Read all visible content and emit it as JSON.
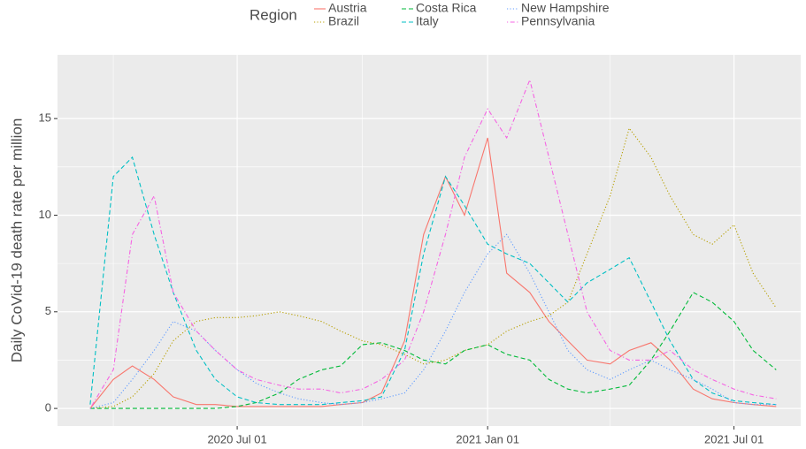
{
  "chart_data": {
    "type": "line",
    "y_label": "Daily CoVid-19 death rate per million",
    "legend_title": "Region",
    "legend_position": "top",
    "x": [
      "2020-03-15",
      "2020-04-01",
      "2020-04-15",
      "2020-05-01",
      "2020-05-15",
      "2020-06-01",
      "2020-06-15",
      "2020-07-01",
      "2020-07-15",
      "2020-08-01",
      "2020-08-15",
      "2020-09-01",
      "2020-09-15",
      "2020-10-01",
      "2020-10-15",
      "2020-11-01",
      "2020-11-15",
      "2020-12-01",
      "2020-12-15",
      "2021-01-01",
      "2021-01-15",
      "2021-02-01",
      "2021-02-15",
      "2021-03-01",
      "2021-03-15",
      "2021-04-01",
      "2021-04-15",
      "2021-05-01",
      "2021-05-15",
      "2021-06-01",
      "2021-06-15",
      "2021-07-01",
      "2021-07-15",
      "2021-08-01"
    ],
    "series": [
      {
        "name": "Austria",
        "color": "#F8766D",
        "linetype": "solid",
        "values": [
          0,
          1.5,
          2.2,
          1.5,
          0.6,
          0.2,
          0.2,
          0.1,
          0.1,
          0.1,
          0.1,
          0.1,
          0.2,
          0.3,
          0.8,
          3.5,
          9,
          12,
          10,
          14,
          7,
          6,
          4.5,
          3.5,
          2.5,
          2.3,
          3,
          3.4,
          2.5,
          1,
          0.5,
          0.3,
          0.2,
          0.1
        ]
      },
      {
        "name": "Brazil",
        "color": "#B79F00",
        "linetype": "dotted",
        "values": [
          0,
          0.1,
          0.6,
          1.8,
          3.5,
          4.5,
          4.7,
          4.7,
          4.8,
          5,
          4.8,
          4.5,
          4,
          3.5,
          3.3,
          2.8,
          2.3,
          2.5,
          3,
          3.3,
          4,
          4.5,
          4.8,
          5.5,
          8,
          11,
          14.5,
          13,
          11,
          9,
          8.5,
          9.5,
          7,
          5.2
        ]
      },
      {
        "name": "Costa Rica",
        "color": "#00BA38",
        "linetype": "dashed",
        "values": [
          0,
          0,
          0,
          0,
          0,
          0,
          0,
          0.1,
          0.3,
          0.8,
          1.5,
          2,
          2.2,
          3.3,
          3.4,
          3,
          2.5,
          2.3,
          3,
          3.3,
          2.8,
          2.5,
          1.5,
          1,
          0.8,
          1,
          1.2,
          2.5,
          4,
          6,
          5.5,
          4.5,
          3,
          2
        ]
      },
      {
        "name": "Italy",
        "color": "#00BFC4",
        "linetype": "dashed",
        "values": [
          0.2,
          12,
          13,
          9,
          6,
          3,
          1.5,
          0.6,
          0.3,
          0.2,
          0.2,
          0.2,
          0.3,
          0.4,
          0.6,
          3,
          8,
          12,
          10.5,
          8.5,
          8,
          7.5,
          6.5,
          5.5,
          6.5,
          7.2,
          7.8,
          5.5,
          3.5,
          1.5,
          0.8,
          0.4,
          0.3,
          0.2
        ]
      },
      {
        "name": "New Hampshire",
        "color": "#619CFF",
        "linetype": "dotted",
        "values": [
          0,
          0.3,
          1.5,
          3,
          4.5,
          4,
          3,
          2,
          1.3,
          0.8,
          0.5,
          0.3,
          0.2,
          0.3,
          0.5,
          0.8,
          2,
          4,
          6,
          8,
          9,
          7,
          5,
          3,
          2,
          1.5,
          2,
          2.5,
          2,
          1.5,
          1,
          0.3,
          0.2,
          0.2
        ]
      },
      {
        "name": "Pennsylvania",
        "color": "#F564E3",
        "linetype": "dotdash",
        "values": [
          0,
          2,
          9,
          11,
          6,
          4,
          3,
          2,
          1.5,
          1.2,
          1,
          1,
          0.8,
          1,
          1.5,
          2.5,
          5,
          9,
          13,
          15.5,
          14,
          17,
          13,
          9,
          5,
          3,
          2.5,
          2.5,
          3,
          2,
          1.5,
          1,
          0.7,
          0.5
        ]
      }
    ],
    "xlim": [
      "2020-02-20",
      "2021-08-19"
    ],
    "xticks": [
      {
        "value": "2020-07-01",
        "label": "2020 Jul 01"
      },
      {
        "value": "2021-01-01",
        "label": "2021 Jan 01"
      },
      {
        "value": "2021-07-01",
        "label": "2021 Jul 01"
      }
    ],
    "x_minor_ticks": [
      "2020-04-01",
      "2020-10-01",
      "2021-04-01"
    ],
    "ylim": [
      -0.91,
      18.3
    ],
    "yticks": [
      0,
      5,
      10,
      15
    ],
    "y_minor_ticks": [
      2.5,
      7.5,
      12.5
    ],
    "grid": true
  }
}
